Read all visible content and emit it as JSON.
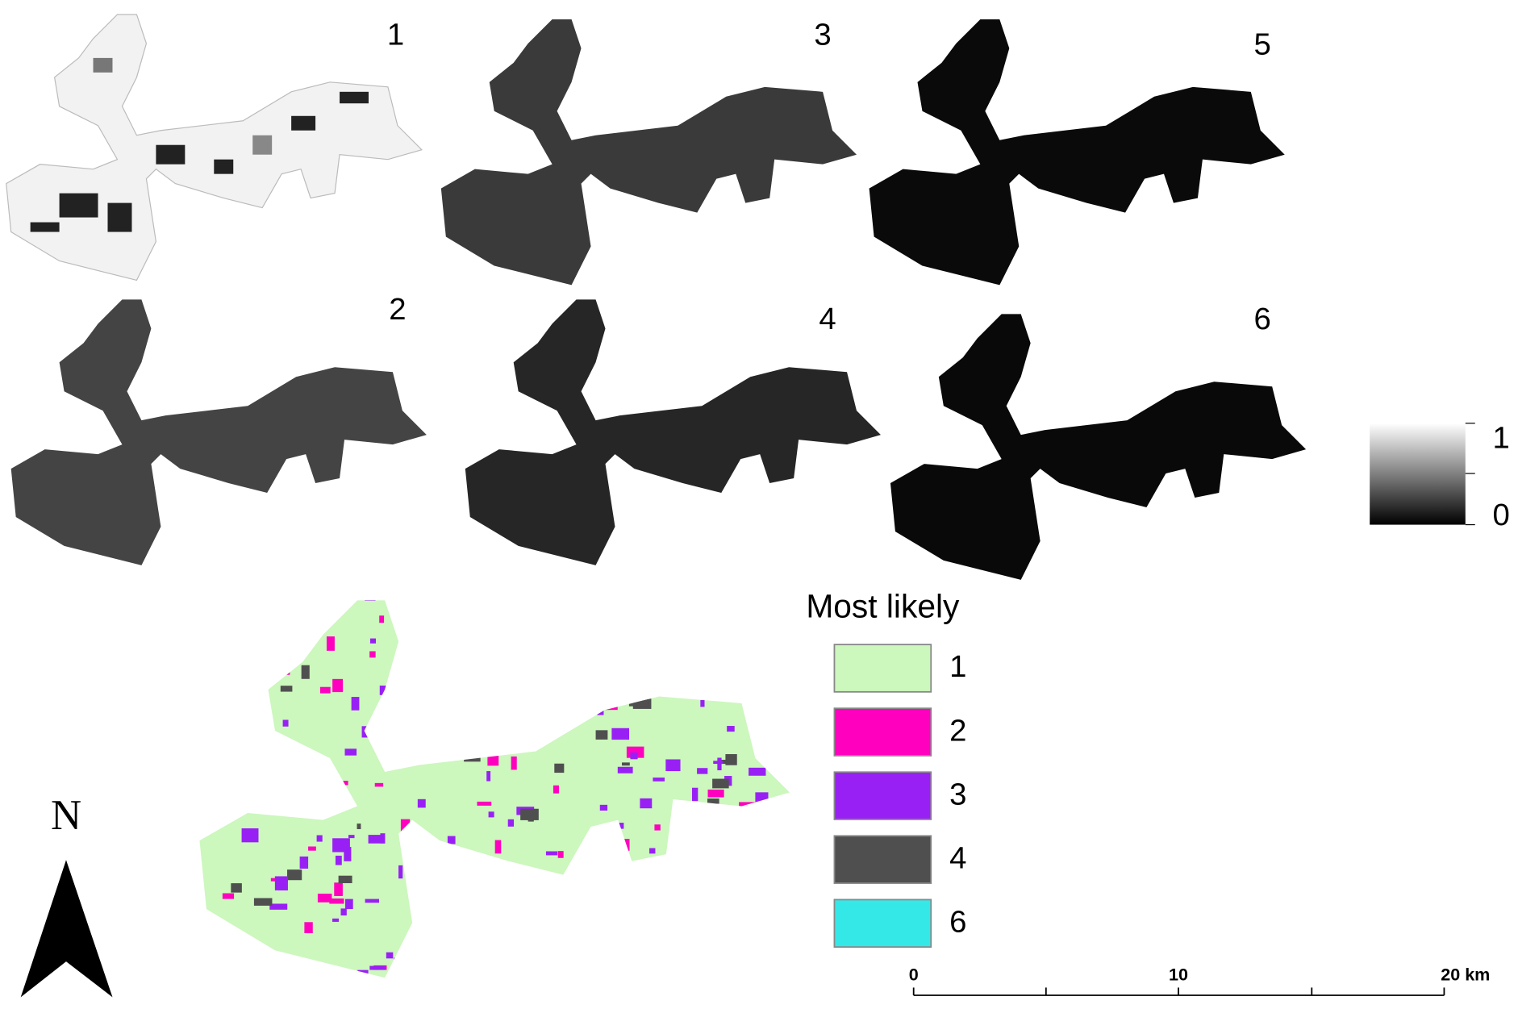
{
  "panels": [
    {
      "label": "1"
    },
    {
      "label": "3"
    },
    {
      "label": "5"
    },
    {
      "label": "2"
    },
    {
      "label": "4"
    },
    {
      "label": "6"
    }
  ],
  "colorbar": {
    "top_label": "1",
    "bottom_label": "0"
  },
  "legend": {
    "title": "Most likely",
    "items": [
      {
        "label": "1",
        "color": "#ccf7bd"
      },
      {
        "label": "2",
        "color": "#ff00bf"
      },
      {
        "label": "3",
        "color": "#9920f5"
      },
      {
        "label": "4",
        "color": "#4f4f4f"
      },
      {
        "label": "6",
        "color": "#34e8e8"
      }
    ]
  },
  "north_arrow": {
    "label": "N"
  },
  "scale_bar": {
    "labels": [
      "0",
      "10",
      "20 km"
    ]
  }
}
